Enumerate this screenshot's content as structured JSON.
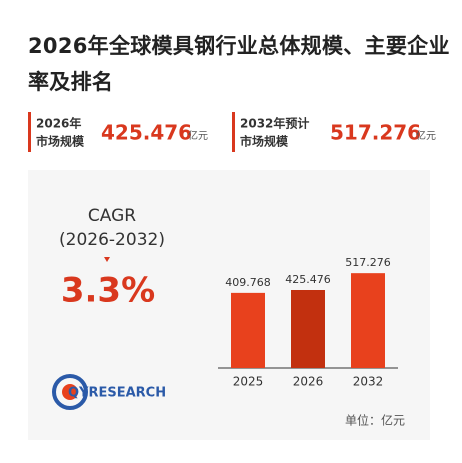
{
  "header": {
    "title": "2026年全球模具钢行业总体规模、主要企业率及排名"
  },
  "stats": [
    {
      "line1": "2026年",
      "line2": "市场规模",
      "value": "425.476",
      "unit": "亿元"
    },
    {
      "line1": "2032年预计",
      "line2": "市场规模",
      "value": "517.276",
      "unit": "亿元"
    }
  ],
  "cagr": {
    "label": "CAGR",
    "period": "(2026-2032)",
    "value": "3.3%"
  },
  "logo": {
    "text": "QYRESEARCH"
  },
  "chart_data": {
    "type": "bar",
    "categories": [
      "2025",
      "2026",
      "2032"
    ],
    "values": [
      409.768,
      425.476,
      517.276
    ],
    "colors": [
      "#e8411d",
      "#c2300f",
      "#e8411d"
    ],
    "ylim": [
      0,
      600
    ],
    "unit_label": "单位：亿元"
  }
}
